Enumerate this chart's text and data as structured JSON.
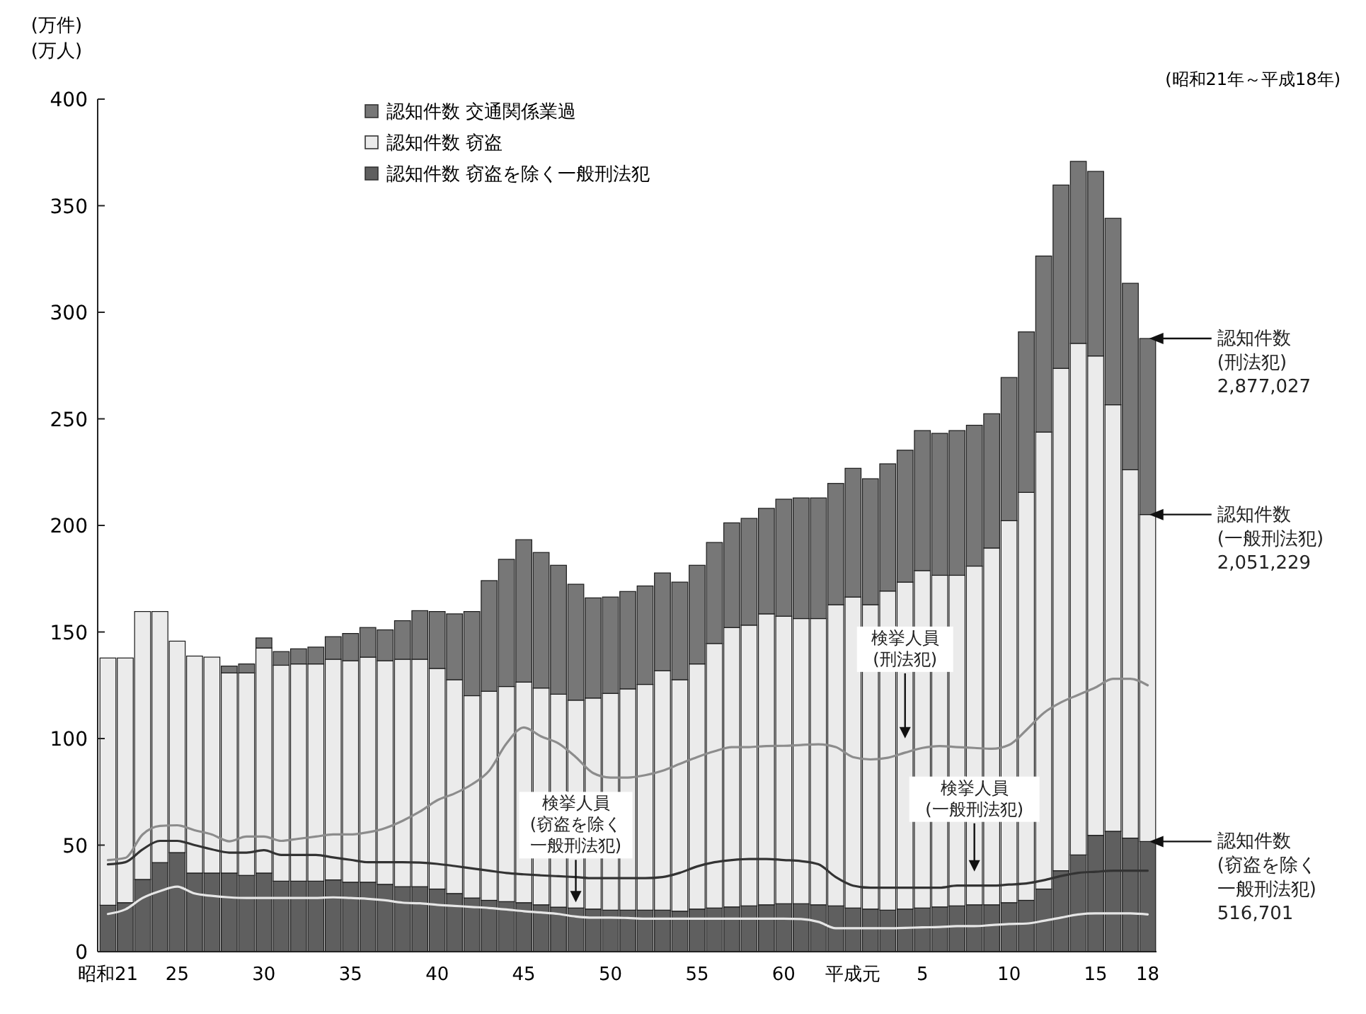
{
  "chart_data": {
    "type": "bar",
    "stacked": true,
    "subtitle": "(昭和21年～平成18年)",
    "ylabel": "(万件)\n(万人)",
    "categories": [
      "昭和21",
      null,
      null,
      null,
      "25",
      null,
      null,
      null,
      null,
      "30",
      null,
      null,
      null,
      null,
      "35",
      null,
      null,
      null,
      null,
      "40",
      null,
      null,
      null,
      null,
      "45",
      null,
      null,
      null,
      null,
      "50",
      null,
      null,
      null,
      null,
      "55",
      null,
      null,
      null,
      null,
      "60",
      null,
      null,
      null,
      "平成元",
      null,
      null,
      null,
      "5",
      null,
      null,
      null,
      null,
      "10",
      null,
      null,
      null,
      null,
      "15",
      null,
      null,
      "18"
    ],
    "ylim": [
      0,
      400
    ],
    "yticks": [
      0,
      50,
      100,
      150,
      200,
      250,
      300,
      350,
      400
    ],
    "legend": "top",
    "series": [
      {
        "name": "認知件数 窃盗を除く一般刑法犯",
        "color": "#5f5f5f",
        "values": [
          21.8,
          23.0,
          33.9,
          41.8,
          46.5,
          36.9,
          36.9,
          36.9,
          35.8,
          36.9,
          33.1,
          33.1,
          33.1,
          33.7,
          32.6,
          32.6,
          31.6,
          30.5,
          30.5,
          29.4,
          27.3,
          25.2,
          24.1,
          23.5,
          23.0,
          22.0,
          20.9,
          20.5,
          20.0,
          19.5,
          19.5,
          19.5,
          19.5,
          19.0,
          20.0,
          20.5,
          21.0,
          21.5,
          22.0,
          22.5,
          22.5,
          22.0,
          21.5,
          20.5,
          20.0,
          19.5,
          20.0,
          20.5,
          21.0,
          21.5,
          22.0,
          22.0,
          23.0,
          24.1,
          29.4,
          38.0,
          45.4,
          54.6,
          56.5,
          53.3,
          51.7
        ]
      },
      {
        "name": "認知件数 窃盗",
        "color": "#ebebeb",
        "values": [
          116.0,
          114.8,
          125.7,
          117.8,
          99.2,
          101.8,
          101.3,
          93.9,
          95.0,
          105.6,
          101.3,
          101.9,
          101.9,
          103.5,
          103.9,
          105.6,
          104.9,
          106.7,
          106.7,
          103.5,
          100.3,
          94.9,
          98.1,
          100.9,
          103.5,
          101.7,
          99.9,
          97.5,
          99.0,
          101.7,
          103.8,
          105.9,
          112.3,
          108.6,
          115.0,
          124.1,
          131.1,
          131.7,
          136.5,
          134.9,
          133.8,
          134.3,
          141.3,
          145.9,
          142.8,
          149.7,
          153.4,
          158.3,
          155.6,
          155.1,
          158.9,
          167.4,
          179.2,
          191.4,
          214.4,
          235.7,
          240.0,
          224.9,
          200.1,
          172.8,
          153.4
        ]
      },
      {
        "name": "認知件数 交通関係業過",
        "color": "#777777",
        "values": [
          0,
          0,
          0,
          0,
          0,
          0,
          0,
          3.2,
          4.2,
          4.7,
          6.4,
          7.1,
          7.9,
          10.6,
          12.8,
          13.9,
          14.5,
          18.1,
          22.8,
          26.7,
          30.9,
          39.5,
          51.9,
          59.7,
          66.8,
          63.6,
          60.5,
          54.4,
          47.0,
          45.2,
          45.7,
          46.2,
          45.9,
          45.8,
          46.3,
          47.4,
          49.1,
          50.1,
          49.5,
          54.9,
          56.6,
          56.6,
          56.9,
          60.4,
          59.1,
          59.7,
          61.9,
          65.7,
          66.6,
          67.9,
          66.1,
          63.0,
          67.2,
          75.3,
          82.6,
          86.0,
          85.4,
          86.6,
          87.5,
          87.5,
          82.6
        ]
      },
      {
        "name": "検挙人員\n(刑法犯)",
        "type": "line",
        "color": "#8c8c8c",
        "values": [
          43,
          44,
          55,
          59,
          59.3,
          57,
          55,
          51.8,
          54,
          54,
          52,
          53,
          54,
          55,
          55,
          56,
          58,
          61.4,
          65.7,
          71,
          74.2,
          78.5,
          84.9,
          97.7,
          105.2,
          101,
          97.7,
          91.3,
          83.8,
          81.7,
          81.7,
          82.8,
          84.9,
          88.1,
          91.3,
          94,
          96,
          96,
          96.5,
          96.6,
          97,
          97.3,
          96,
          91.3,
          90.2,
          91,
          93.4,
          95.6,
          96.5,
          96,
          95.6,
          95.2,
          97,
          104,
          112,
          117,
          120.5,
          124,
          128,
          128,
          125
        ]
      },
      {
        "name": "検挙人員\n(一般刑法犯)",
        "type": "line",
        "color": "#333333",
        "values": [
          41,
          42,
          48,
          52,
          52,
          50,
          48,
          46.5,
          46.5,
          47.6,
          45.4,
          45.4,
          45.4,
          44.2,
          43.1,
          42,
          42,
          42,
          41.8,
          41.2,
          40.2,
          39.1,
          38,
          36.9,
          36.3,
          35.8,
          35.4,
          35,
          34.5,
          34.5,
          34.5,
          34.5,
          35,
          37,
          40,
          42,
          43,
          43.5,
          43.5,
          43,
          42.5,
          41,
          35,
          31,
          30,
          30,
          30,
          30,
          30,
          31,
          31,
          31,
          31.5,
          32,
          33.5,
          35.5,
          37,
          37.5,
          38,
          38,
          38
        ]
      },
      {
        "name": "検挙人員\n(窃盗を除く一般刑法犯)",
        "type": "line",
        "color": "#e6e6e6",
        "values": [
          17.7,
          19.8,
          25.2,
          28.4,
          30.5,
          27.3,
          26.2,
          25.5,
          25.2,
          25.2,
          25.2,
          25.2,
          25.2,
          25.5,
          25.2,
          24.8,
          24.1,
          23,
          22.7,
          22,
          21.5,
          21,
          20.5,
          19.8,
          19,
          18.4,
          17.7,
          16.5,
          16,
          16,
          15.8,
          15.5,
          15.5,
          15.5,
          15.5,
          15.5,
          15.5,
          15.5,
          15.5,
          15.5,
          15.3,
          14,
          11,
          11,
          11,
          11,
          11.2,
          11.4,
          11.6,
          12,
          12,
          12.5,
          13,
          13.2,
          14.5,
          16,
          17.5,
          18,
          18,
          18,
          17.5
        ]
      }
    ],
    "annotations": [
      "認知件数\n(刑法犯)\n2,877,027",
      "認知件数\n(一般刑法犯)\n2,051,229",
      "認知件数\n(窃盗を除く一般刑法犯)\n516,701"
    ]
  }
}
